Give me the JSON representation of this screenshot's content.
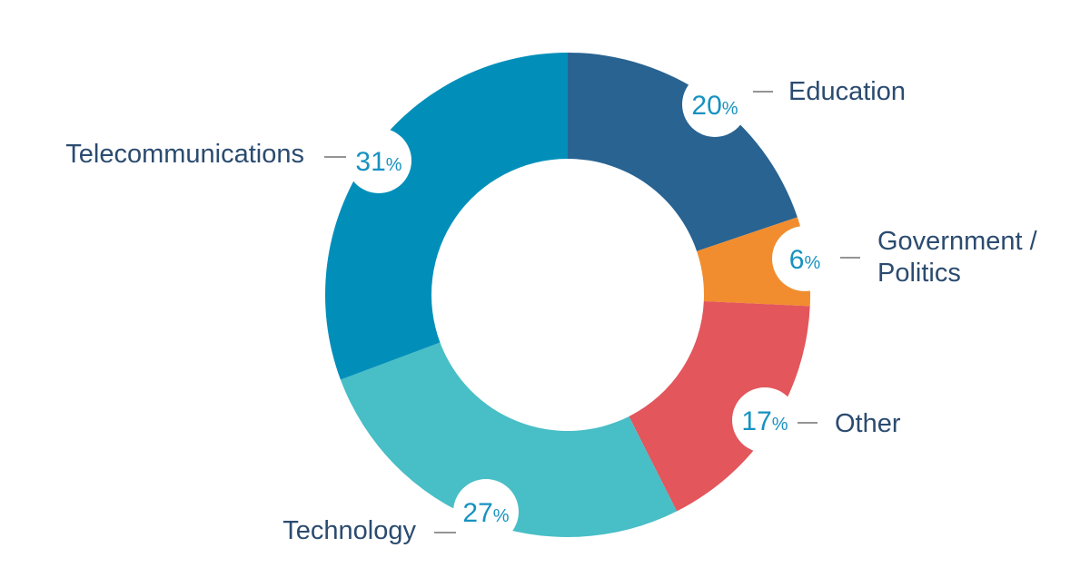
{
  "chart_data": {
    "type": "pie",
    "variant": "donut",
    "title": "",
    "categories": [
      "Education",
      "Government / Politics",
      "Other",
      "Technology",
      "Telecommunications"
    ],
    "values": [
      20,
      6,
      17,
      27,
      31
    ],
    "unit": "%",
    "slices": [
      {
        "label": "Education",
        "label_lines": [
          "Education"
        ],
        "value": 20,
        "pct_text": "20",
        "color": "#286392"
      },
      {
        "label": "Government / Politics",
        "label_lines": [
          "Government /",
          "Politics"
        ],
        "value": 6,
        "pct_text": "6",
        "color": "#f18d2e"
      },
      {
        "label": "Other",
        "label_lines": [
          "Other"
        ],
        "value": 17,
        "pct_text": "17",
        "color": "#e2565c"
      },
      {
        "label": "Technology",
        "label_lines": [
          "Technology"
        ],
        "value": 27,
        "pct_text": "27",
        "color": "#48bec6"
      },
      {
        "label": "Telecommunications",
        "label_lines": [
          "Telecommunications"
        ],
        "value": 31,
        "pct_text": "31",
        "color": "#018fba"
      }
    ],
    "label_color": "#2b4b70",
    "percent_color": "#1792c0",
    "leader_color": "#555555"
  }
}
